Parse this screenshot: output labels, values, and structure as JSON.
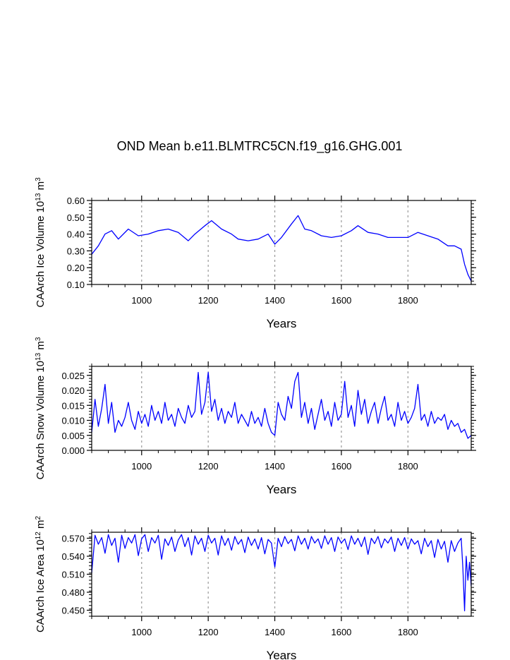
{
  "title": "OND Mean b.e11.BLMTRC5CN.f19_g16.GHG.001",
  "colors": {
    "series": "#0000ff",
    "axis": "#000000",
    "gridline": "#999999"
  },
  "chart_data": [
    {
      "type": "line",
      "ylabel_main": "CAArch Ice Volume 10",
      "ylabel_exp": "13",
      "ylabel_unit": " m",
      "ylabel_unit_exp": "3",
      "xlabel": "Years",
      "xlim": [
        850,
        1990
      ],
      "ylim": [
        0.1,
        0.6
      ],
      "xticks": [
        "1000",
        "1200",
        "1400",
        "1600",
        "1800"
      ],
      "xtick_values": [
        1000,
        1200,
        1400,
        1600,
        1800
      ],
      "yticks": [
        "0.10",
        "0.20",
        "0.30",
        "0.40",
        "0.50",
        "0.60"
      ],
      "ytick_values": [
        0.1,
        0.2,
        0.3,
        0.4,
        0.5,
        0.6
      ],
      "grid": "dashed vertical at x ticks",
      "series": [
        {
          "x": [
            850,
            870,
            890,
            910,
            930,
            960,
            990,
            1020,
            1050,
            1080,
            1110,
            1140,
            1160,
            1190,
            1210,
            1240,
            1270,
            1290,
            1320,
            1350,
            1380,
            1400,
            1420,
            1450,
            1470,
            1490,
            1510,
            1540,
            1570,
            1600,
            1630,
            1650,
            1680,
            1710,
            1740,
            1770,
            1800,
            1830,
            1860,
            1890,
            1920,
            1940,
            1960,
            1970,
            1980,
            1990
          ],
          "values": [
            0.28,
            0.33,
            0.4,
            0.42,
            0.37,
            0.43,
            0.39,
            0.4,
            0.42,
            0.43,
            0.41,
            0.36,
            0.4,
            0.45,
            0.48,
            0.43,
            0.4,
            0.37,
            0.36,
            0.37,
            0.4,
            0.34,
            0.38,
            0.46,
            0.51,
            0.43,
            0.42,
            0.39,
            0.38,
            0.39,
            0.42,
            0.45,
            0.41,
            0.4,
            0.38,
            0.38,
            0.38,
            0.41,
            0.39,
            0.37,
            0.33,
            0.33,
            0.31,
            0.22,
            0.16,
            0.12
          ]
        }
      ]
    },
    {
      "type": "line",
      "ylabel_main": "CAArch Snow Volume 10",
      "ylabel_exp": "13",
      "ylabel_unit": " m",
      "ylabel_unit_exp": "3",
      "xlabel": "Years",
      "xlim": [
        850,
        1990
      ],
      "ylim": [
        0.0,
        0.028
      ],
      "xticks": [
        "1000",
        "1200",
        "1400",
        "1600",
        "1800"
      ],
      "xtick_values": [
        1000,
        1200,
        1400,
        1600,
        1800
      ],
      "yticks": [
        "0.000",
        "0.005",
        "0.010",
        "0.015",
        "0.020",
        "0.025"
      ],
      "ytick_values": [
        0.0,
        0.005,
        0.01,
        0.015,
        0.02,
        0.025
      ],
      "grid": "dashed vertical at x ticks",
      "series": [
        {
          "x": [
            850,
            860,
            870,
            880,
            890,
            900,
            910,
            920,
            930,
            940,
            950,
            960,
            970,
            980,
            990,
            1000,
            1010,
            1020,
            1030,
            1040,
            1050,
            1060,
            1070,
            1080,
            1090,
            1100,
            1110,
            1120,
            1130,
            1140,
            1150,
            1160,
            1170,
            1180,
            1190,
            1200,
            1210,
            1220,
            1230,
            1240,
            1250,
            1260,
            1270,
            1280,
            1290,
            1300,
            1310,
            1320,
            1330,
            1340,
            1350,
            1360,
            1370,
            1380,
            1390,
            1400,
            1410,
            1420,
            1430,
            1440,
            1450,
            1460,
            1470,
            1480,
            1490,
            1500,
            1510,
            1520,
            1530,
            1540,
            1550,
            1560,
            1570,
            1580,
            1590,
            1600,
            1610,
            1620,
            1630,
            1640,
            1650,
            1660,
            1670,
            1680,
            1690,
            1700,
            1710,
            1720,
            1730,
            1740,
            1750,
            1760,
            1770,
            1780,
            1790,
            1800,
            1810,
            1820,
            1830,
            1840,
            1850,
            1860,
            1870,
            1880,
            1890,
            1900,
            1910,
            1920,
            1930,
            1940,
            1950,
            1960,
            1970,
            1980,
            1990
          ],
          "values": [
            0.006,
            0.017,
            0.008,
            0.014,
            0.022,
            0.009,
            0.016,
            0.006,
            0.01,
            0.008,
            0.011,
            0.016,
            0.01,
            0.007,
            0.013,
            0.009,
            0.012,
            0.008,
            0.015,
            0.01,
            0.013,
            0.009,
            0.016,
            0.01,
            0.012,
            0.008,
            0.014,
            0.011,
            0.009,
            0.015,
            0.011,
            0.013,
            0.026,
            0.012,
            0.016,
            0.026,
            0.013,
            0.017,
            0.01,
            0.014,
            0.009,
            0.013,
            0.011,
            0.016,
            0.009,
            0.012,
            0.01,
            0.008,
            0.013,
            0.009,
            0.011,
            0.008,
            0.014,
            0.009,
            0.006,
            0.005,
            0.016,
            0.012,
            0.01,
            0.018,
            0.014,
            0.023,
            0.026,
            0.011,
            0.016,
            0.009,
            0.014,
            0.007,
            0.012,
            0.017,
            0.01,
            0.013,
            0.008,
            0.016,
            0.01,
            0.012,
            0.023,
            0.011,
            0.015,
            0.008,
            0.02,
            0.012,
            0.017,
            0.009,
            0.013,
            0.016,
            0.009,
            0.014,
            0.018,
            0.01,
            0.012,
            0.008,
            0.016,
            0.01,
            0.013,
            0.009,
            0.011,
            0.014,
            0.022,
            0.01,
            0.012,
            0.008,
            0.013,
            0.009,
            0.011,
            0.01,
            0.012,
            0.007,
            0.01,
            0.008,
            0.009,
            0.006,
            0.007,
            0.004,
            0.005
          ]
        }
      ]
    },
    {
      "type": "line",
      "ylabel_main": "CAArch Ice Area 10",
      "ylabel_exp": "12",
      "ylabel_unit": " m",
      "ylabel_unit_exp": "2",
      "xlabel": "Years",
      "xlim": [
        850,
        1990
      ],
      "ylim": [
        0.44,
        0.58
      ],
      "xticks": [
        "1000",
        "1200",
        "1400",
        "1600",
        "1800"
      ],
      "xtick_values": [
        1000,
        1200,
        1400,
        1600,
        1800
      ],
      "yticks": [
        "0.450",
        "0.480",
        "0.510",
        "0.540",
        "0.570"
      ],
      "ytick_values": [
        0.45,
        0.48,
        0.51,
        0.54,
        0.57
      ],
      "grid": "dashed vertical at x ticks",
      "series": [
        {
          "x": [
            850,
            860,
            870,
            880,
            890,
            900,
            910,
            920,
            930,
            940,
            950,
            960,
            970,
            980,
            990,
            1000,
            1010,
            1020,
            1030,
            1040,
            1050,
            1060,
            1070,
            1080,
            1090,
            1100,
            1110,
            1120,
            1130,
            1140,
            1150,
            1160,
            1170,
            1180,
            1190,
            1200,
            1210,
            1220,
            1230,
            1240,
            1250,
            1260,
            1270,
            1280,
            1290,
            1300,
            1310,
            1320,
            1330,
            1340,
            1350,
            1360,
            1370,
            1380,
            1390,
            1400,
            1410,
            1420,
            1430,
            1440,
            1450,
            1460,
            1470,
            1480,
            1490,
            1500,
            1510,
            1520,
            1530,
            1540,
            1550,
            1560,
            1570,
            1580,
            1590,
            1600,
            1610,
            1620,
            1630,
            1640,
            1650,
            1660,
            1670,
            1680,
            1690,
            1700,
            1710,
            1720,
            1730,
            1740,
            1750,
            1760,
            1770,
            1780,
            1790,
            1800,
            1810,
            1820,
            1830,
            1840,
            1850,
            1860,
            1870,
            1880,
            1890,
            1900,
            1910,
            1920,
            1930,
            1940,
            1950,
            1960,
            1965,
            1970,
            1975,
            1980,
            1985,
            1990
          ],
          "values": [
            0.512,
            0.575,
            0.56,
            0.571,
            0.545,
            0.576,
            0.558,
            0.57,
            0.53,
            0.575,
            0.553,
            0.571,
            0.562,
            0.576,
            0.541,
            0.569,
            0.576,
            0.548,
            0.571,
            0.562,
            0.575,
            0.535,
            0.569,
            0.558,
            0.572,
            0.548,
            0.567,
            0.576,
            0.556,
            0.571,
            0.542,
            0.574,
            0.56,
            0.57,
            0.548,
            0.575,
            0.562,
            0.57,
            0.542,
            0.574,
            0.558,
            0.57,
            0.55,
            0.573,
            0.56,
            0.568,
            0.546,
            0.572,
            0.558,
            0.569,
            0.552,
            0.571,
            0.544,
            0.568,
            0.562,
            0.522,
            0.57,
            0.556,
            0.573,
            0.561,
            0.568,
            0.549,
            0.574,
            0.56,
            0.57,
            0.552,
            0.573,
            0.562,
            0.569,
            0.553,
            0.574,
            0.56,
            0.571,
            0.548,
            0.572,
            0.562,
            0.569,
            0.551,
            0.574,
            0.56,
            0.57,
            0.556,
            0.572,
            0.543,
            0.57,
            0.561,
            0.573,
            0.554,
            0.569,
            0.562,
            0.572,
            0.548,
            0.57,
            0.558,
            0.571,
            0.552,
            0.569,
            0.56,
            0.566,
            0.544,
            0.57,
            0.556,
            0.566,
            0.538,
            0.568,
            0.552,
            0.565,
            0.53,
            0.566,
            0.548,
            0.562,
            0.57,
            0.52,
            0.449,
            0.54,
            0.5,
            0.53,
            0.49
          ]
        }
      ]
    }
  ]
}
